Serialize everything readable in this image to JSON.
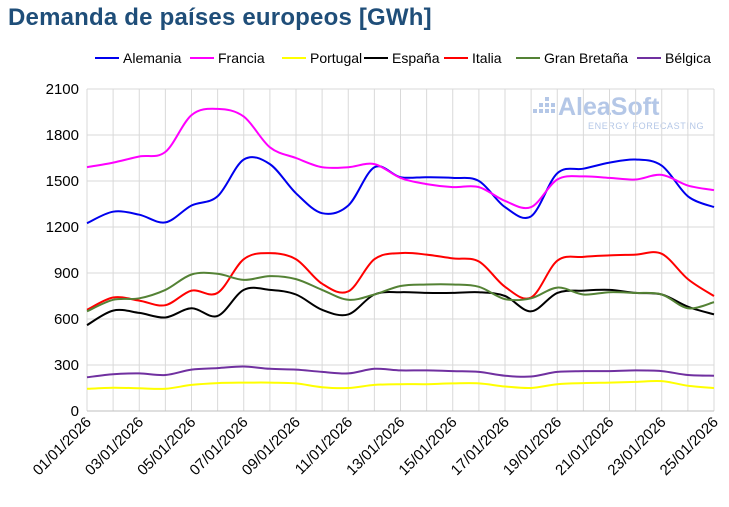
{
  "title": "Demanda de países europeos [GWh]",
  "watermark": {
    "brand": "AleaSoft",
    "tagline": "ENERGY FORECASTING"
  },
  "chart_data": {
    "type": "line",
    "x": [
      "01/01/2026",
      "02/01/2026",
      "03/01/2026",
      "04/01/2026",
      "05/01/2026",
      "06/01/2026",
      "07/01/2026",
      "08/01/2026",
      "09/01/2026",
      "10/01/2026",
      "11/01/2026",
      "12/01/2026",
      "13/01/2026",
      "14/01/2026",
      "15/01/2026",
      "16/01/2026",
      "17/01/2026",
      "18/01/2026",
      "19/01/2026",
      "20/01/2026",
      "21/01/2026",
      "22/01/2026",
      "23/01/2026",
      "24/01/2026",
      "25/01/2026"
    ],
    "x_tick_labels": [
      "01/01/2026",
      "03/01/2026",
      "05/01/2026",
      "07/01/2026",
      "09/01/2026",
      "11/01/2026",
      "13/01/2026",
      "15/01/2026",
      "17/01/2026",
      "19/01/2026",
      "21/01/2026",
      "23/01/2026",
      "25/01/2026"
    ],
    "ylim": [
      0,
      2100
    ],
    "y_ticks": [
      0,
      300,
      600,
      900,
      1200,
      1500,
      1800,
      2100
    ],
    "grid": true,
    "legend_position": "top",
    "series": [
      {
        "name": "Alemania",
        "color": "#0000ee",
        "values": [
          1225,
          1300,
          1280,
          1230,
          1340,
          1400,
          1640,
          1610,
          1420,
          1290,
          1340,
          1590,
          1525,
          1525,
          1520,
          1500,
          1330,
          1270,
          1550,
          1580,
          1620,
          1640,
          1600,
          1400,
          1330
        ]
      },
      {
        "name": "Francia",
        "color": "#ff00ff",
        "values": [
          1590,
          1620,
          1660,
          1690,
          1930,
          1970,
          1920,
          1720,
          1650,
          1590,
          1590,
          1610,
          1520,
          1480,
          1460,
          1460,
          1370,
          1330,
          1510,
          1530,
          1520,
          1510,
          1540,
          1470,
          1440
        ]
      },
      {
        "name": "Portugal",
        "color": "#ffff00",
        "values": [
          145,
          152,
          148,
          145,
          170,
          182,
          185,
          185,
          180,
          155,
          150,
          170,
          175,
          175,
          180,
          180,
          160,
          150,
          175,
          182,
          185,
          190,
          195,
          165,
          150
        ]
      },
      {
        "name": "España",
        "color": "#000000",
        "values": [
          560,
          655,
          640,
          610,
          670,
          620,
          790,
          790,
          760,
          660,
          630,
          760,
          775,
          770,
          770,
          775,
          750,
          650,
          770,
          785,
          790,
          770,
          760,
          680,
          630
        ]
      },
      {
        "name": "Italia",
        "color": "#ff0000",
        "values": [
          660,
          740,
          720,
          690,
          785,
          770,
          990,
          1030,
          990,
          830,
          780,
          990,
          1030,
          1020,
          995,
          975,
          810,
          740,
          980,
          1005,
          1015,
          1020,
          1025,
          860,
          750
        ]
      },
      {
        "name": "Gran Bretaña",
        "color": "#548235",
        "values": [
          650,
          725,
          735,
          790,
          890,
          895,
          855,
          880,
          860,
          790,
          725,
          760,
          815,
          825,
          825,
          810,
          730,
          735,
          805,
          760,
          775,
          770,
          760,
          670,
          710
        ]
      },
      {
        "name": "Bélgica",
        "color": "#7030a0",
        "values": [
          220,
          240,
          245,
          235,
          270,
          280,
          290,
          275,
          270,
          255,
          245,
          275,
          265,
          265,
          260,
          255,
          230,
          225,
          255,
          260,
          260,
          265,
          260,
          235,
          230
        ]
      }
    ]
  }
}
